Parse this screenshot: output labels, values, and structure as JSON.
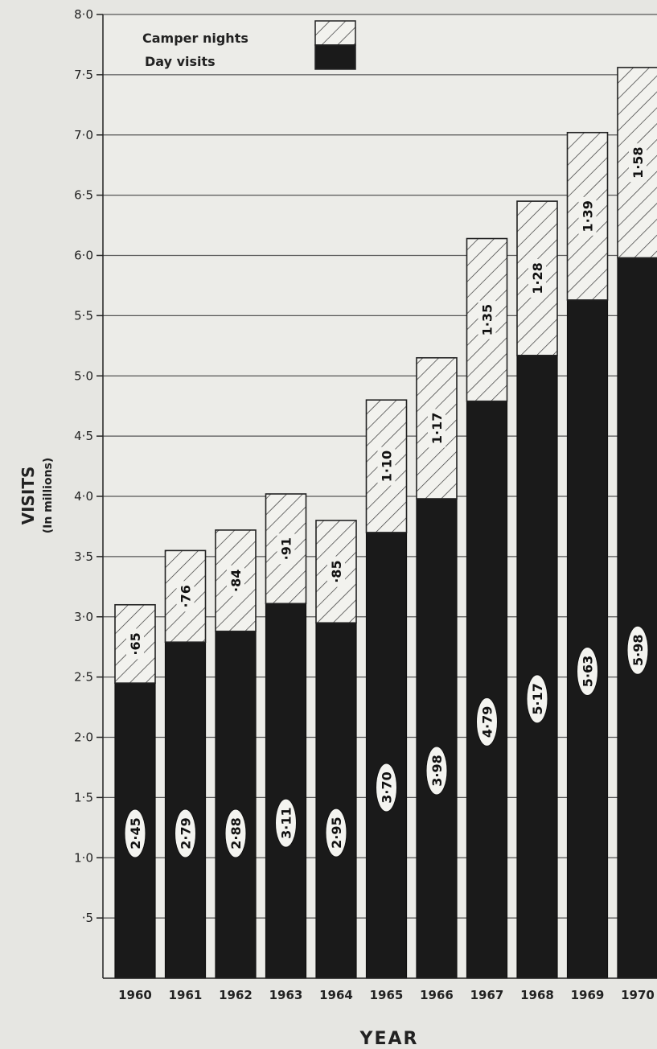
{
  "chart_data": {
    "type": "bar",
    "stacked": true,
    "categories": [
      "1960",
      "1961",
      "1962",
      "1963",
      "1964",
      "1965",
      "1966",
      "1967",
      "1968",
      "1969",
      "1970"
    ],
    "series": [
      {
        "name": "Day visits",
        "values": [
          2.45,
          2.79,
          2.88,
          3.11,
          2.95,
          3.7,
          3.98,
          4.79,
          5.17,
          5.63,
          5.98
        ],
        "color": "#1a1a1a"
      },
      {
        "name": "Camper nights",
        "values": [
          0.65,
          0.76,
          0.84,
          0.91,
          0.85,
          1.1,
          1.17,
          1.35,
          1.28,
          1.39,
          1.58
        ],
        "color": "#f2f2ee",
        "pattern": "hatched"
      }
    ],
    "data_labels": {
      "Day visits": [
        "2·45",
        "2·79",
        "2·88",
        "3·11",
        "2·95",
        "3·70",
        "3·98",
        "4·79",
        "5·17",
        "5·63",
        "5·98"
      ],
      "Camper nights": [
        "·65",
        "·76",
        "·84",
        "·91",
        "·85",
        "1·10",
        "1·17",
        "1·35",
        "1·28",
        "1·39",
        "1·58"
      ]
    },
    "yticks": [
      "·5",
      "1·0",
      "1·5",
      "2·0",
      "2·5",
      "3·0",
      "3·5",
      "4·0",
      "4·5",
      "5·0",
      "5·5",
      "6·0",
      "6·5",
      "7·0",
      "7·5",
      "8·0"
    ],
    "ytick_values": [
      0.5,
      1.0,
      1.5,
      2.0,
      2.5,
      3.0,
      3.5,
      4.0,
      4.5,
      5.0,
      5.5,
      6.0,
      6.5,
      7.0,
      7.5,
      8.0
    ],
    "ylim": [
      0,
      8.0
    ],
    "ylabel": "VISITS",
    "ylabel_sub": "(In millions)",
    "xlabel": "YEAR",
    "grid": true,
    "legend_position": "top-left"
  }
}
